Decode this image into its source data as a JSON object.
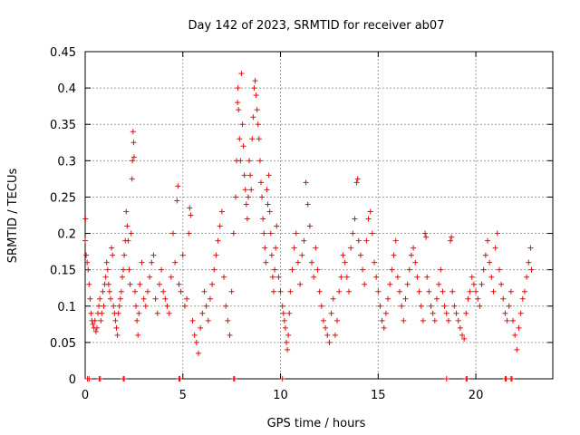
{
  "chart_data": {
    "type": "scatter",
    "title": "Day 142 of 2023, SRMTID for receiver ab07",
    "xlabel": "GPS time / hours",
    "ylabel": "SRMTID / TECUs",
    "xlim": [
      0,
      23.94
    ],
    "ylim": [
      0,
      0.45
    ],
    "xticks": [
      0,
      5,
      10,
      15,
      20
    ],
    "yticks": [
      0,
      0.05,
      0.1,
      0.15,
      0.2,
      0.25,
      0.3,
      0.35,
      0.4,
      0.45
    ],
    "grid": true,
    "marker": "+",
    "color": "#ff0000",
    "zero_points_hours": [
      0.12,
      0.2,
      0.72,
      0.78,
      1.95,
      2.0,
      4.8,
      4.85,
      7.6,
      7.65,
      10.1,
      18.5,
      19.5,
      19.55,
      21.5,
      21.55,
      21.8,
      21.85
    ],
    "series": [
      {
        "name": "SRMTID",
        "points": [
          [
            0.0,
            0.19
          ],
          [
            0.02,
            0.22
          ],
          [
            0.05,
            0.17
          ],
          [
            0.1,
            0.16
          ],
          [
            0.15,
            0.15
          ],
          [
            0.2,
            0.13
          ],
          [
            0.25,
            0.11
          ],
          [
            0.3,
            0.09
          ],
          [
            0.35,
            0.08
          ],
          [
            0.4,
            0.075
          ],
          [
            0.45,
            0.07
          ],
          [
            0.5,
            0.08
          ],
          [
            0.55,
            0.065
          ],
          [
            0.6,
            0.07
          ],
          [
            0.65,
            0.09
          ],
          [
            0.7,
            0.1
          ],
          [
            0.75,
            0.11
          ],
          [
            0.8,
            0.08
          ],
          [
            0.85,
            0.09
          ],
          [
            0.9,
            0.12
          ],
          [
            0.95,
            0.1
          ],
          [
            1.0,
            0.13
          ],
          [
            1.05,
            0.14
          ],
          [
            1.1,
            0.16
          ],
          [
            1.15,
            0.15
          ],
          [
            1.2,
            0.13
          ],
          [
            1.25,
            0.12
          ],
          [
            1.3,
            0.11
          ],
          [
            1.35,
            0.18
          ],
          [
            1.4,
            0.17
          ],
          [
            1.45,
            0.1
          ],
          [
            1.5,
            0.09
          ],
          [
            1.55,
            0.08
          ],
          [
            1.6,
            0.07
          ],
          [
            1.65,
            0.06
          ],
          [
            1.7,
            0.09
          ],
          [
            1.75,
            0.1
          ],
          [
            1.8,
            0.11
          ],
          [
            1.85,
            0.12
          ],
          [
            1.9,
            0.14
          ],
          [
            1.95,
            0.15
          ],
          [
            2.0,
            0.17
          ],
          [
            2.05,
            0.19
          ],
          [
            2.1,
            0.23
          ],
          [
            2.15,
            0.21
          ],
          [
            2.2,
            0.19
          ],
          [
            2.25,
            0.15
          ],
          [
            2.3,
            0.13
          ],
          [
            2.35,
            0.2
          ],
          [
            2.4,
            0.275
          ],
          [
            2.42,
            0.3
          ],
          [
            2.45,
            0.34
          ],
          [
            2.48,
            0.325
          ],
          [
            2.5,
            0.305
          ],
          [
            2.55,
            0.12
          ],
          [
            2.6,
            0.1
          ],
          [
            2.65,
            0.08
          ],
          [
            2.7,
            0.06
          ],
          [
            2.75,
            0.09
          ],
          [
            2.8,
            0.13
          ],
          [
            2.9,
            0.16
          ],
          [
            3.0,
            0.11
          ],
          [
            3.1,
            0.1
          ],
          [
            3.2,
            0.12
          ],
          [
            3.3,
            0.14
          ],
          [
            3.4,
            0.16
          ],
          [
            3.5,
            0.17
          ],
          [
            3.6,
            0.11
          ],
          [
            3.7,
            0.09
          ],
          [
            3.8,
            0.13
          ],
          [
            3.9,
            0.15
          ],
          [
            4.0,
            0.12
          ],
          [
            4.1,
            0.11
          ],
          [
            4.2,
            0.1
          ],
          [
            4.3,
            0.09
          ],
          [
            4.4,
            0.14
          ],
          [
            4.5,
            0.2
          ],
          [
            4.6,
            0.16
          ],
          [
            4.7,
            0.245
          ],
          [
            4.75,
            0.265
          ],
          [
            4.8,
            0.13
          ],
          [
            4.9,
            0.12
          ],
          [
            5.0,
            0.17
          ],
          [
            5.1,
            0.1
          ],
          [
            5.2,
            0.11
          ],
          [
            5.3,
            0.2
          ],
          [
            5.35,
            0.235
          ],
          [
            5.4,
            0.225
          ],
          [
            5.5,
            0.08
          ],
          [
            5.6,
            0.06
          ],
          [
            5.7,
            0.05
          ],
          [
            5.8,
            0.035
          ],
          [
            5.9,
            0.07
          ],
          [
            6.0,
            0.09
          ],
          [
            6.1,
            0.12
          ],
          [
            6.2,
            0.1
          ],
          [
            6.3,
            0.08
          ],
          [
            6.4,
            0.11
          ],
          [
            6.5,
            0.13
          ],
          [
            6.6,
            0.15
          ],
          [
            6.7,
            0.17
          ],
          [
            6.8,
            0.19
          ],
          [
            6.9,
            0.21
          ],
          [
            7.0,
            0.23
          ],
          [
            7.1,
            0.14
          ],
          [
            7.2,
            0.1
          ],
          [
            7.3,
            0.08
          ],
          [
            7.4,
            0.06
          ],
          [
            7.5,
            0.12
          ],
          [
            7.6,
            0.2
          ],
          [
            7.7,
            0.25
          ],
          [
            7.75,
            0.3
          ],
          [
            7.8,
            0.38
          ],
          [
            7.82,
            0.4
          ],
          [
            7.85,
            0.37
          ],
          [
            7.9,
            0.33
          ],
          [
            7.95,
            0.3
          ],
          [
            8.0,
            0.42
          ],
          [
            8.05,
            0.35
          ],
          [
            8.1,
            0.32
          ],
          [
            8.15,
            0.28
          ],
          [
            8.2,
            0.26
          ],
          [
            8.25,
            0.24
          ],
          [
            8.3,
            0.22
          ],
          [
            8.35,
            0.25
          ],
          [
            8.4,
            0.3
          ],
          [
            8.45,
            0.28
          ],
          [
            8.5,
            0.26
          ],
          [
            8.55,
            0.33
          ],
          [
            8.6,
            0.36
          ],
          [
            8.65,
            0.4
          ],
          [
            8.7,
            0.41
          ],
          [
            8.75,
            0.39
          ],
          [
            8.8,
            0.37
          ],
          [
            8.85,
            0.35
          ],
          [
            8.9,
            0.33
          ],
          [
            8.95,
            0.3
          ],
          [
            9.0,
            0.27
          ],
          [
            9.05,
            0.25
          ],
          [
            9.1,
            0.22
          ],
          [
            9.15,
            0.2
          ],
          [
            9.2,
            0.18
          ],
          [
            9.25,
            0.16
          ],
          [
            9.3,
            0.26
          ],
          [
            9.35,
            0.24
          ],
          [
            9.4,
            0.28
          ],
          [
            9.45,
            0.23
          ],
          [
            9.5,
            0.2
          ],
          [
            9.55,
            0.17
          ],
          [
            9.6,
            0.14
          ],
          [
            9.65,
            0.12
          ],
          [
            9.7,
            0.15
          ],
          [
            9.75,
            0.18
          ],
          [
            9.8,
            0.21
          ],
          [
            9.9,
            0.14
          ],
          [
            10.0,
            0.12
          ],
          [
            10.1,
            0.1
          ],
          [
            10.15,
            0.09
          ],
          [
            10.2,
            0.08
          ],
          [
            10.25,
            0.07
          ],
          [
            10.3,
            0.05
          ],
          [
            10.35,
            0.04
          ],
          [
            10.4,
            0.06
          ],
          [
            10.45,
            0.09
          ],
          [
            10.5,
            0.12
          ],
          [
            10.6,
            0.15
          ],
          [
            10.7,
            0.18
          ],
          [
            10.8,
            0.2
          ],
          [
            10.9,
            0.16
          ],
          [
            11.0,
            0.13
          ],
          [
            11.1,
            0.17
          ],
          [
            11.2,
            0.19
          ],
          [
            11.3,
            0.27
          ],
          [
            11.4,
            0.24
          ],
          [
            11.5,
            0.21
          ],
          [
            11.6,
            0.16
          ],
          [
            11.7,
            0.14
          ],
          [
            11.8,
            0.18
          ],
          [
            11.9,
            0.15
          ],
          [
            12.0,
            0.12
          ],
          [
            12.1,
            0.1
          ],
          [
            12.2,
            0.08
          ],
          [
            12.3,
            0.07
          ],
          [
            12.4,
            0.06
          ],
          [
            12.5,
            0.05
          ],
          [
            12.6,
            0.09
          ],
          [
            12.7,
            0.11
          ],
          [
            12.8,
            0.06
          ],
          [
            12.9,
            0.08
          ],
          [
            13.0,
            0.12
          ],
          [
            13.1,
            0.14
          ],
          [
            13.2,
            0.17
          ],
          [
            13.3,
            0.16
          ],
          [
            13.4,
            0.14
          ],
          [
            13.5,
            0.12
          ],
          [
            13.6,
            0.18
          ],
          [
            13.7,
            0.2
          ],
          [
            13.8,
            0.22
          ],
          [
            13.9,
            0.27
          ],
          [
            13.95,
            0.275
          ],
          [
            14.0,
            0.19
          ],
          [
            14.1,
            0.17
          ],
          [
            14.2,
            0.15
          ],
          [
            14.3,
            0.13
          ],
          [
            14.4,
            0.19
          ],
          [
            14.5,
            0.22
          ],
          [
            14.6,
            0.23
          ],
          [
            14.7,
            0.2
          ],
          [
            14.8,
            0.16
          ],
          [
            14.9,
            0.14
          ],
          [
            15.0,
            0.12
          ],
          [
            15.1,
            0.1
          ],
          [
            15.2,
            0.08
          ],
          [
            15.3,
            0.07
          ],
          [
            15.4,
            0.09
          ],
          [
            15.5,
            0.11
          ],
          [
            15.6,
            0.13
          ],
          [
            15.7,
            0.15
          ],
          [
            15.8,
            0.17
          ],
          [
            15.9,
            0.19
          ],
          [
            16.0,
            0.14
          ],
          [
            16.1,
            0.12
          ],
          [
            16.2,
            0.1
          ],
          [
            16.3,
            0.08
          ],
          [
            16.4,
            0.11
          ],
          [
            16.5,
            0.13
          ],
          [
            16.6,
            0.15
          ],
          [
            16.7,
            0.17
          ],
          [
            16.8,
            0.18
          ],
          [
            16.9,
            0.16
          ],
          [
            17.0,
            0.14
          ],
          [
            17.1,
            0.12
          ],
          [
            17.2,
            0.1
          ],
          [
            17.3,
            0.08
          ],
          [
            17.4,
            0.2
          ],
          [
            17.45,
            0.195
          ],
          [
            17.5,
            0.14
          ],
          [
            17.6,
            0.12
          ],
          [
            17.7,
            0.1
          ],
          [
            17.8,
            0.09
          ],
          [
            17.9,
            0.08
          ],
          [
            18.0,
            0.11
          ],
          [
            18.1,
            0.13
          ],
          [
            18.2,
            0.15
          ],
          [
            18.3,
            0.12
          ],
          [
            18.4,
            0.1
          ],
          [
            18.5,
            0.09
          ],
          [
            18.6,
            0.08
          ],
          [
            18.7,
            0.19
          ],
          [
            18.75,
            0.195
          ],
          [
            18.8,
            0.12
          ],
          [
            18.9,
            0.1
          ],
          [
            19.0,
            0.09
          ],
          [
            19.1,
            0.08
          ],
          [
            19.2,
            0.07
          ],
          [
            19.3,
            0.06
          ],
          [
            19.4,
            0.055
          ],
          [
            19.5,
            0.09
          ],
          [
            19.6,
            0.11
          ],
          [
            19.7,
            0.12
          ],
          [
            19.8,
            0.14
          ],
          [
            19.9,
            0.13
          ],
          [
            20.0,
            0.12
          ],
          [
            20.1,
            0.11
          ],
          [
            20.2,
            0.1
          ],
          [
            20.3,
            0.13
          ],
          [
            20.4,
            0.15
          ],
          [
            20.5,
            0.17
          ],
          [
            20.6,
            0.19
          ],
          [
            20.7,
            0.16
          ],
          [
            20.8,
            0.14
          ],
          [
            20.9,
            0.12
          ],
          [
            21.0,
            0.18
          ],
          [
            21.1,
            0.2
          ],
          [
            21.2,
            0.15
          ],
          [
            21.3,
            0.13
          ],
          [
            21.4,
            0.11
          ],
          [
            21.5,
            0.09
          ],
          [
            21.6,
            0.08
          ],
          [
            21.7,
            0.1
          ],
          [
            21.8,
            0.12
          ],
          [
            21.9,
            0.08
          ],
          [
            22.0,
            0.06
          ],
          [
            22.1,
            0.04
          ],
          [
            22.2,
            0.07
          ],
          [
            22.3,
            0.09
          ],
          [
            22.4,
            0.11
          ],
          [
            22.5,
            0.12
          ],
          [
            22.6,
            0.14
          ],
          [
            22.7,
            0.16
          ],
          [
            22.8,
            0.18
          ],
          [
            22.85,
            0.15
          ]
        ]
      }
    ]
  }
}
